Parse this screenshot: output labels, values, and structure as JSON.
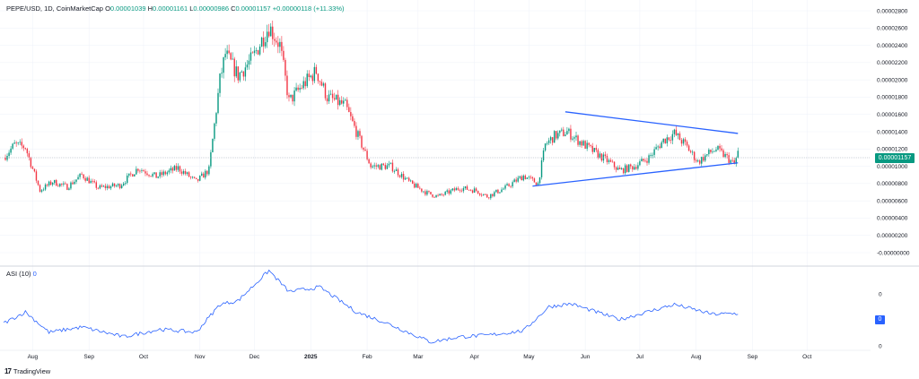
{
  "header": {
    "symbol": "PEPE/USD, 1D, CoinMarketCap",
    "o_key": "O",
    "o_val": "0.00001039",
    "h_key": "H",
    "h_val": "0.00001161",
    "l_key": "L",
    "l_val": "0.00000986",
    "c_key": "C",
    "c_val": "0.00001157",
    "change": "+0.00000118 (+11.33%)"
  },
  "price_tag": "0.00001157",
  "asi": {
    "label": "ASI (10)",
    "value": "0",
    "tag": "0"
  },
  "branding": {
    "logo_text": "TradingView",
    "logo_mark": "17"
  },
  "colors": {
    "up": "#089981",
    "down": "#f23645",
    "trendline": "#2962ff",
    "asi_line": "#2962ff",
    "grid": "#f0f3fa"
  },
  "chart_data": [
    {
      "type": "candlestick",
      "title": "PEPE/USD, 1D, CoinMarketCap",
      "y_ticks": [
        "0.00002800",
        "0.00002600",
        "0.00002400",
        "0.00002200",
        "0.00002000",
        "0.00001800",
        "0.00001600",
        "0.00001400",
        "0.00001200",
        "0.00001000",
        "0.00000800",
        "0.00000600",
        "0.00000400",
        "0.00000200",
        "-0.00000000"
      ],
      "ylim": [
        0,
        2.8e-05
      ],
      "x_ticks": [
        "Aug",
        "Sep",
        "Oct",
        "Nov",
        "Dec",
        "2025",
        "Feb",
        "Mar",
        "Apr",
        "May",
        "Jun",
        "Jul",
        "Aug",
        "Sep",
        "Oct"
      ],
      "x_range": [
        "2024-07-16",
        "2025-10-31"
      ],
      "last_close": 1.157e-05,
      "close_path": [
        [
          "2024-07-16",
          1.1e-05
        ],
        [
          "2024-07-22",
          1.25e-05
        ],
        [
          "2024-07-28",
          1.22e-05
        ],
        [
          "2024-08-05",
          7.2e-06
        ],
        [
          "2024-08-12",
          8.2e-06
        ],
        [
          "2024-08-20",
          7.6e-06
        ],
        [
          "2024-08-28",
          9e-06
        ],
        [
          "2024-09-06",
          7.5e-06
        ],
        [
          "2024-09-18",
          7.8e-06
        ],
        [
          "2024-09-28",
          9.8e-06
        ],
        [
          "2024-10-08",
          8.8e-06
        ],
        [
          "2024-10-20",
          9.8e-06
        ],
        [
          "2024-10-30",
          8.2e-06
        ],
        [
          "2024-11-06",
          9.6e-06
        ],
        [
          "2024-11-12",
          2e-05
        ],
        [
          "2024-11-15",
          2.3e-05
        ],
        [
          "2024-11-22",
          2.05e-05
        ],
        [
          "2024-11-30",
          2.25e-05
        ],
        [
          "2024-12-06",
          2.5e-05
        ],
        [
          "2024-12-09",
          2.62e-05
        ],
        [
          "2024-12-15",
          2.4e-05
        ],
        [
          "2024-12-20",
          1.75e-05
        ],
        [
          "2024-12-28",
          1.95e-05
        ],
        [
          "2025-01-04",
          2.1e-05
        ],
        [
          "2025-01-10",
          1.8e-05
        ],
        [
          "2025-01-20",
          1.7e-05
        ],
        [
          "2025-01-26",
          1.4e-05
        ],
        [
          "2025-02-03",
          1e-05
        ],
        [
          "2025-02-14",
          1e-05
        ],
        [
          "2025-02-25",
          8e-06
        ],
        [
          "2025-03-06",
          6.9e-06
        ],
        [
          "2025-03-12",
          6.5e-06
        ],
        [
          "2025-03-24",
          7.5e-06
        ],
        [
          "2025-04-02",
          7.2e-06
        ],
        [
          "2025-04-08",
          6.5e-06
        ],
        [
          "2025-04-18",
          7.5e-06
        ],
        [
          "2025-04-28",
          8.9e-06
        ],
        [
          "2025-05-06",
          8e-06
        ],
        [
          "2025-05-10",
          1.25e-05
        ],
        [
          "2025-05-15",
          1.35e-05
        ],
        [
          "2025-05-22",
          1.4e-05
        ],
        [
          "2025-05-28",
          1.3e-05
        ],
        [
          "2025-06-05",
          1.18e-05
        ],
        [
          "2025-06-14",
          1.05e-05
        ],
        [
          "2025-06-20",
          9.5e-06
        ],
        [
          "2025-06-28",
          1e-05
        ],
        [
          "2025-07-06",
          1.1e-05
        ],
        [
          "2025-07-14",
          1.3e-05
        ],
        [
          "2025-07-20",
          1.38e-05
        ],
        [
          "2025-07-26",
          1.25e-05
        ],
        [
          "2025-08-02",
          1.05e-05
        ],
        [
          "2025-08-08",
          1.15e-05
        ],
        [
          "2025-08-12",
          1.2e-05
        ],
        [
          "2025-08-18",
          1.1e-05
        ],
        [
          "2025-08-22",
          1.02e-05
        ],
        [
          "2025-08-24",
          1.16e-05
        ]
      ],
      "trendlines": [
        {
          "from": [
            "2025-05-21",
            1.63e-05
          ],
          "to": [
            "2025-08-24",
            1.38e-05
          ]
        },
        {
          "from": [
            "2025-05-03",
            7.7e-06
          ],
          "to": [
            "2025-08-24",
            1.04e-05
          ]
        }
      ]
    },
    {
      "type": "line",
      "title": "ASI (10)",
      "y_ticks": [
        "0",
        "0"
      ],
      "path": [
        [
          "2024-07-16",
          0.3
        ],
        [
          "2024-07-28",
          0.45
        ],
        [
          "2024-08-10",
          0.18
        ],
        [
          "2024-08-28",
          0.25
        ],
        [
          "2024-09-20",
          0.12
        ],
        [
          "2024-10-10",
          0.22
        ],
        [
          "2024-10-30",
          0.18
        ],
        [
          "2024-11-12",
          0.55
        ],
        [
          "2024-11-22",
          0.6
        ],
        [
          "2024-12-09",
          1.0
        ],
        [
          "2024-12-20",
          0.72
        ],
        [
          "2025-01-06",
          0.78
        ],
        [
          "2025-01-26",
          0.45
        ],
        [
          "2025-02-10",
          0.32
        ],
        [
          "2025-03-08",
          0.05
        ],
        [
          "2025-03-24",
          0.12
        ],
        [
          "2025-04-08",
          0.14
        ],
        [
          "2025-04-28",
          0.2
        ],
        [
          "2025-05-12",
          0.52
        ],
        [
          "2025-05-24",
          0.56
        ],
        [
          "2025-06-20",
          0.35
        ],
        [
          "2025-07-20",
          0.55
        ],
        [
          "2025-08-10",
          0.42
        ],
        [
          "2025-08-24",
          0.43
        ]
      ]
    }
  ]
}
